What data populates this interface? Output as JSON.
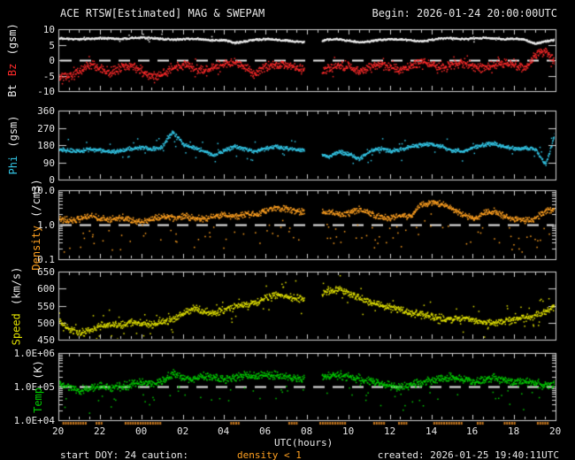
{
  "title": {
    "left": "ACE RTSW[Estimated] MAG & SWEPAM",
    "right": "Begin: 2026-01-24 20:00:00UTC"
  },
  "footer": {
    "start_doy": "start DOY: 24",
    "caution_label": "caution:",
    "caution_value": "density < 1",
    "created": "created: 2026-01-25 19:40:11UTC"
  },
  "colors": {
    "frame": "#d0d0d0",
    "text": "#e8e8e8",
    "bt": "#f0f0f0",
    "bz": "#ff2a2a",
    "phi": "#33c6e6",
    "density": "#ffa020",
    "speed": "#e2e200",
    "temp": "#00cc00",
    "refline": "#e8e8e8",
    "caution_marks": "#c8781e"
  },
  "xaxis": {
    "label": "UTC(hours)",
    "tick_labels": [
      "20",
      "22",
      "00",
      "02",
      "04",
      "06",
      "08",
      "10",
      "12",
      "14",
      "16",
      "18",
      "20"
    ],
    "hours_span": 24,
    "minor_tick_hours": 0.5,
    "gaps": [
      [
        11.85,
        12.7
      ]
    ],
    "caution_ranges": [
      [
        0.2,
        1.3
      ],
      [
        1.8,
        2.1
      ],
      [
        3.2,
        4.9
      ],
      [
        8.3,
        8.7
      ],
      [
        11.1,
        11.5
      ],
      [
        12.6,
        13.9
      ],
      [
        15.2,
        15.7
      ],
      [
        16.4,
        16.8
      ],
      [
        18.1,
        19.5
      ],
      [
        20.2,
        20.5
      ],
      [
        21.5,
        22.0
      ],
      [
        23.1,
        23.6
      ]
    ]
  },
  "chart_data": [
    {
      "type": "scatter",
      "panel": "bt_bz",
      "ylabel_parts": [
        {
          "text": "Bt",
          "color": "#f0f0f0"
        },
        {
          "text": "Bz",
          "color": "#ff2a2a"
        },
        {
          "text": "(gsm)",
          "color": "#f0f0f0"
        }
      ],
      "log": false,
      "ylim": [
        -10,
        10
      ],
      "refline": 0,
      "yticks": [
        {
          "v": 10,
          "t": "10"
        },
        {
          "v": 5,
          "t": "5"
        },
        {
          "v": 0,
          "t": "0"
        },
        {
          "v": -5,
          "t": "-5"
        },
        {
          "v": -10,
          "t": "-10"
        }
      ],
      "x_start": 0,
      "x_step": 0.5,
      "series": [
        {
          "name": "Bt",
          "color": "#f0f0f0",
          "noise": 0.22,
          "out_rate": 0.01,
          "out_mag": 1.0,
          "values": [
            7.2,
            7.0,
            7.0,
            7.1,
            7.3,
            7.2,
            7.0,
            7.4,
            7.5,
            7.3,
            7.0,
            6.8,
            7.0,
            7.2,
            6.8,
            6.5,
            6.7,
            5.8,
            6.3,
            6.8,
            7.0,
            6.8,
            6.5,
            6.2,
            6.0,
            6.2,
            6.8,
            7.0,
            6.5,
            5.9,
            6.2,
            6.8,
            7.0,
            6.9,
            6.6,
            6.2,
            6.8,
            7.2,
            7.3,
            7.0,
            7.2,
            7.4,
            7.2,
            7.0,
            7.1,
            6.8,
            5.5,
            6.3,
            6.8
          ]
        },
        {
          "name": "Bz",
          "color": "#ff2a2a",
          "noise": 0.95,
          "out_rate": 0.05,
          "out_mag": 1.6,
          "values": [
            -4.8,
            -5.2,
            -3.5,
            -1.0,
            -2.5,
            -4.0,
            -2.0,
            -1.5,
            -3.0,
            -5.0,
            -4.5,
            -2.5,
            -1.5,
            -2.0,
            -3.5,
            -2.0,
            -1.0,
            -0.5,
            -2.5,
            -4.5,
            -2.0,
            -1.0,
            -1.5,
            -2.5,
            -3.0,
            -4.5,
            -2.5,
            -1.5,
            -2.0,
            -3.5,
            -2.5,
            -1.0,
            -2.0,
            -3.0,
            -1.5,
            -0.5,
            -1.0,
            -2.5,
            -1.5,
            -0.5,
            -1.8,
            -2.8,
            -1.2,
            -0.5,
            -1.5,
            -2.5,
            2.0,
            3.5,
            -1.0
          ]
        }
      ]
    },
    {
      "type": "scatter",
      "panel": "phi",
      "ylabel_parts": [
        {
          "text": "Phi",
          "color": "#33c6e6"
        },
        {
          "text": "(gsm)",
          "color": "#e8e8e8"
        }
      ],
      "log": false,
      "ylim": [
        0,
        360
      ],
      "refline": null,
      "yticks": [
        {
          "v": 360,
          "t": "360"
        },
        {
          "v": 270,
          "t": "270"
        },
        {
          "v": 180,
          "t": "180"
        },
        {
          "v": 90,
          "t": "90"
        },
        {
          "v": 0,
          "t": "0"
        }
      ],
      "x_start": 0,
      "x_step": 0.5,
      "series": [
        {
          "name": "Phi",
          "color": "#33c6e6",
          "noise": 7,
          "out_rate": 0.04,
          "out_mag": 40,
          "values": [
            160,
            155,
            150,
            160,
            155,
            148,
            152,
            165,
            170,
            160,
            175,
            255,
            185,
            170,
            150,
            130,
            155,
            175,
            160,
            150,
            165,
            175,
            165,
            160,
            155,
            145,
            120,
            150,
            135,
            110,
            150,
            165,
            150,
            160,
            175,
            185,
            190,
            175,
            155,
            150,
            170,
            185,
            190,
            175,
            165,
            170,
            160,
            80,
            260
          ]
        }
      ]
    },
    {
      "type": "scatter",
      "panel": "density",
      "ylabel_parts": [
        {
          "text": "Density",
          "color": "#ffa020"
        },
        {
          "text": "(/cm3)",
          "color": "#e8e8e8"
        }
      ],
      "log": true,
      "ylim": [
        0.1,
        10
      ],
      "refline": 1.0,
      "yticks": [
        {
          "v": 10,
          "t": "10.0"
        },
        {
          "v": 1,
          "t": "1.0"
        },
        {
          "v": 0.1,
          "t": "0.1"
        }
      ],
      "x_start": 0,
      "x_step": 0.5,
      "series": [
        {
          "name": "Density",
          "color": "#ffa020",
          "noise": 0.07,
          "out_rate": 0.08,
          "out_mag": 0.7,
          "out_down": true,
          "values": [
            1.6,
            1.4,
            1.5,
            1.8,
            1.6,
            1.5,
            1.7,
            1.4,
            1.2,
            1.5,
            1.9,
            1.6,
            1.8,
            1.7,
            1.5,
            1.8,
            2.0,
            1.7,
            2.2,
            2.0,
            2.8,
            3.2,
            3.0,
            2.6,
            2.4,
            2.2,
            2.5,
            2.0,
            2.3,
            2.8,
            2.2,
            1.8,
            1.6,
            2.0,
            1.7,
            4.0,
            4.5,
            4.2,
            3.0,
            2.0,
            1.5,
            2.2,
            2.5,
            1.8,
            1.5,
            1.4,
            1.6,
            2.5,
            3.0
          ]
        }
      ]
    },
    {
      "type": "scatter",
      "panel": "speed",
      "ylabel_parts": [
        {
          "text": "Speed",
          "color": "#e2e200"
        },
        {
          "text": "(km/s)",
          "color": "#e8e8e8"
        }
      ],
      "log": false,
      "ylim": [
        450,
        650
      ],
      "refline": null,
      "yticks": [
        {
          "v": 650,
          "t": "650"
        },
        {
          "v": 600,
          "t": "600"
        },
        {
          "v": 550,
          "t": "550"
        },
        {
          "v": 500,
          "t": "500"
        },
        {
          "v": 450,
          "t": "450"
        }
      ],
      "x_start": 0,
      "x_step": 0.5,
      "series": [
        {
          "name": "Speed",
          "color": "#e2e200",
          "noise": 7,
          "out_rate": 0.06,
          "out_mag": 30,
          "values": [
            505,
            485,
            470,
            480,
            492,
            498,
            495,
            502,
            500,
            496,
            505,
            512,
            530,
            545,
            535,
            528,
            540,
            548,
            556,
            562,
            575,
            585,
            580,
            572,
            570,
            585,
            595,
            600,
            588,
            575,
            562,
            552,
            545,
            538,
            530,
            525,
            520,
            515,
            512,
            515,
            510,
            505,
            502,
            505,
            510,
            515,
            522,
            535,
            548
          ]
        }
      ]
    },
    {
      "type": "scatter",
      "panel": "temp",
      "ylabel_parts": [
        {
          "text": "Temp",
          "color": "#00cc00"
        },
        {
          "text": "(K)",
          "color": "#e8e8e8"
        }
      ],
      "log": true,
      "ylim": [
        10000,
        1000000
      ],
      "refline": 100000,
      "yticks": [
        {
          "v": 1000000,
          "t": "1.0E+06"
        },
        {
          "v": 100000,
          "t": "1.0E+05"
        },
        {
          "v": 10000,
          "t": "1.0E+04"
        }
      ],
      "x_start": 0,
      "x_step": 0.5,
      "series": [
        {
          "name": "Temp",
          "color": "#00cc00",
          "noise": 0.09,
          "out_rate": 0.05,
          "out_mag": 0.55,
          "out_down": true,
          "values": [
            120000,
            100000,
            80000,
            90000,
            110000,
            95000,
            105000,
            120000,
            140000,
            130000,
            150000,
            250000,
            200000,
            180000,
            220000,
            190000,
            170000,
            200000,
            230000,
            210000,
            240000,
            220000,
            200000,
            180000,
            170000,
            190000,
            210000,
            230000,
            200000,
            180000,
            150000,
            130000,
            110000,
            100000,
            120000,
            140000,
            160000,
            180000,
            200000,
            170000,
            150000,
            170000,
            190000,
            160000,
            140000,
            150000,
            130000,
            110000,
            120000
          ]
        }
      ]
    }
  ]
}
